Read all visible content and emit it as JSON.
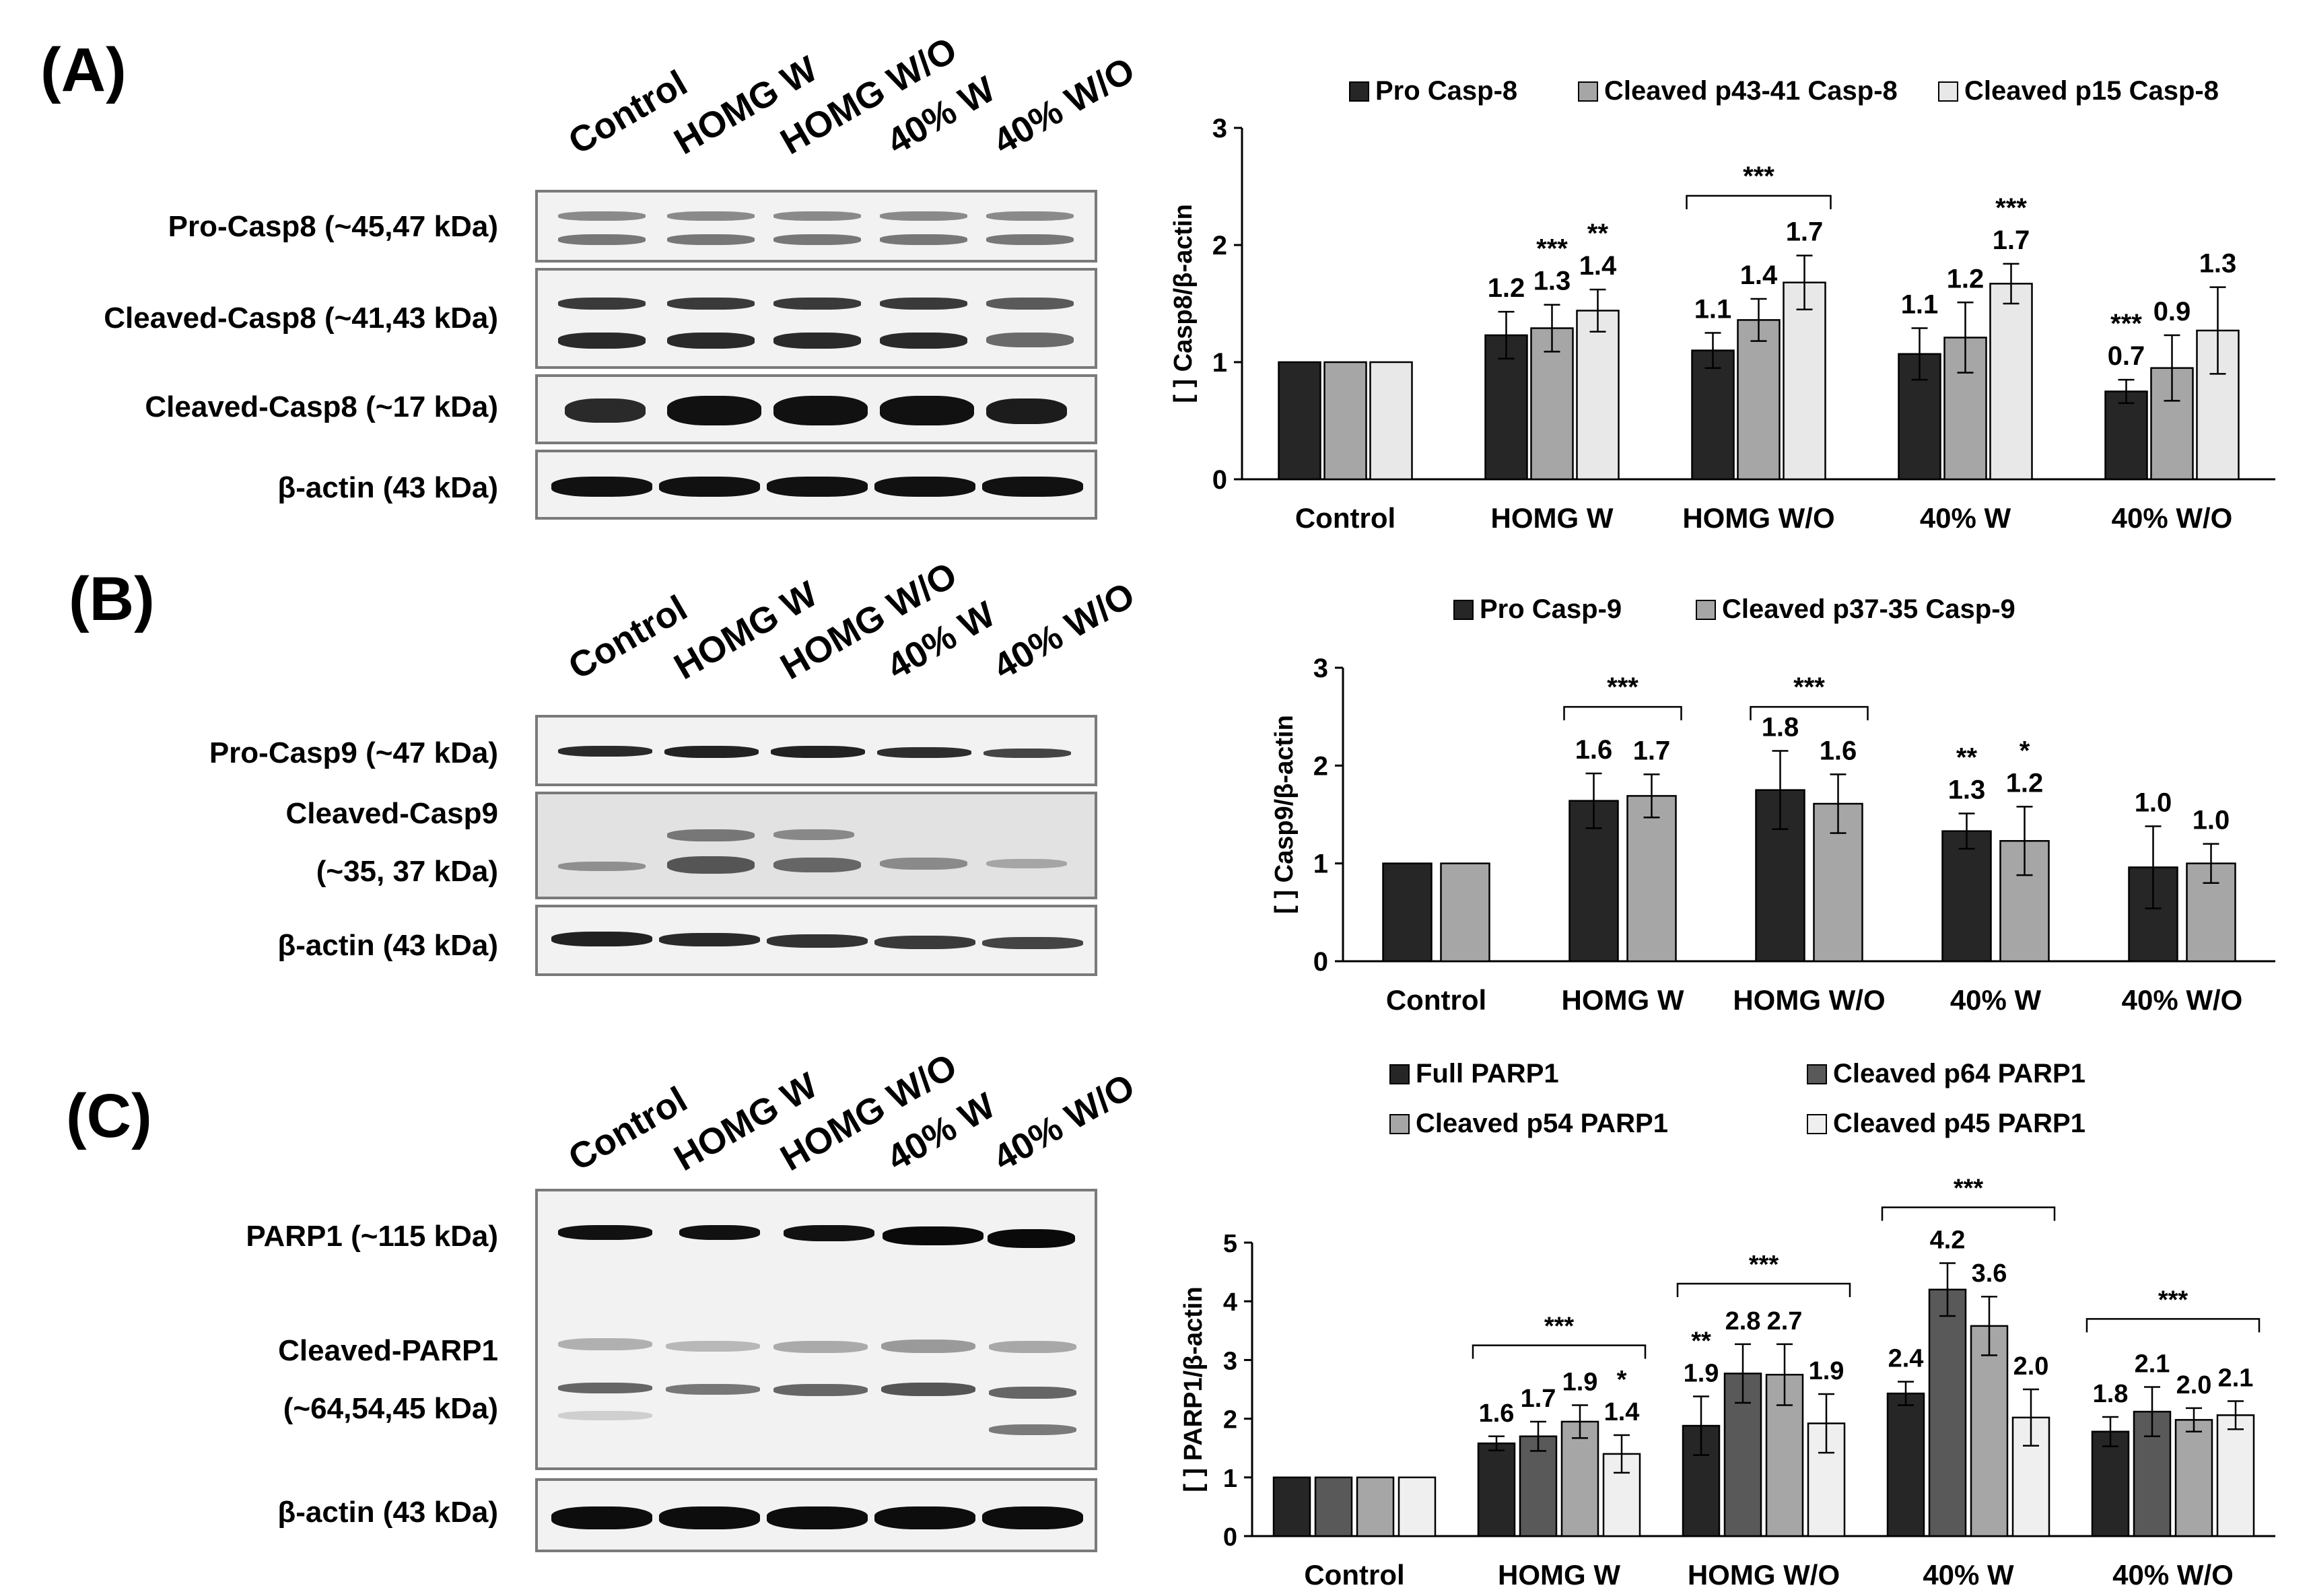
{
  "panels": [
    {
      "letter": "(A)",
      "lanes": [
        "Control",
        "HOMG W",
        "HOMG W/O",
        "40% W",
        "40% W/O"
      ],
      "rows": [
        "Pro-Casp8 (~45,47 kDa)",
        "Cleaved-Casp8 (~41,43 kDa)",
        "Cleaved-Casp8 (~17 kDa)",
        "β-actin (43 kDa)"
      ]
    },
    {
      "letter": "(B)",
      "lanes": [
        "Control",
        "HOMG W",
        "HOMG W/O",
        "40% W",
        "40% W/O"
      ],
      "rows": [
        "Pro-Casp9 (~47 kDa)",
        "Cleaved-Casp9",
        "(~35, 37 kDa)",
        "β-actin (43 kDa)"
      ]
    },
    {
      "letter": "(C)",
      "lanes": [
        "Control",
        "HOMG W",
        "HOMG W/O",
        "40% W",
        "40% W/O"
      ],
      "rows": [
        "PARP1 (~115 kDa)",
        "Cleaved-PARP1",
        "(~64,54,45 kDa)",
        "β-actin (43 kDa)"
      ]
    }
  ],
  "chart_data": [
    {
      "type": "bar",
      "ylabel": "[ ] Casp8/β-actin",
      "ylim": [
        0,
        3
      ],
      "yticks": [
        "0",
        "1",
        "2",
        "3"
      ],
      "categories": [
        "Control",
        "HOMG W",
        "HOMG W/O",
        "40% W",
        "40% W/O"
      ],
      "series": [
        {
          "name": "Pro Casp-8",
          "color": "#262626",
          "values": [
            1.0,
            1.23,
            1.1,
            1.07,
            0.75
          ],
          "errors": [
            0,
            0.2,
            0.15,
            0.22,
            0.1
          ]
        },
        {
          "name": "Cleaved p43-41 Casp-8",
          "color": "#a6a6a6",
          "values": [
            1.0,
            1.29,
            1.36,
            1.21,
            0.95
          ],
          "errors": [
            0,
            0.2,
            0.18,
            0.3,
            0.28
          ]
        },
        {
          "name": "Cleaved p15 Casp-8",
          "color": "#e8e8e8",
          "values": [
            1.0,
            1.44,
            1.68,
            1.67,
            1.27
          ],
          "errors": [
            0,
            0.18,
            0.23,
            0.17,
            0.37
          ]
        }
      ],
      "data_labels": [
        [
          null,
          "1.2",
          "1.1",
          "1.1",
          "0.7"
        ],
        [
          null,
          "1.3",
          "1.4",
          "1.2",
          "0.9"
        ],
        [
          null,
          "1.4",
          "1.7",
          "1.7",
          "1.3"
        ]
      ],
      "stars": [
        [
          null,
          "",
          "",
          "",
          "***"
        ],
        [
          null,
          "***",
          "",
          "",
          ""
        ],
        [
          null,
          "**",
          "",
          "***",
          ""
        ]
      ],
      "brackets": [
        {
          "category": 2,
          "label": "***",
          "y": 2.42
        }
      ]
    },
    {
      "type": "bar",
      "ylabel": "[ ] Casp9/β-actin",
      "ylim": [
        0,
        3
      ],
      "yticks": [
        "0",
        "1",
        "2",
        "3"
      ],
      "categories": [
        "Control",
        "HOMG W",
        "HOMG W/O",
        "40% W",
        "40% W/O"
      ],
      "series": [
        {
          "name": "Pro Casp-9",
          "color": "#262626",
          "values": [
            1.0,
            1.64,
            1.75,
            1.33,
            0.96
          ],
          "errors": [
            0,
            0.28,
            0.4,
            0.18,
            0.42
          ]
        },
        {
          "name": "Cleaved p37-35 Casp-9",
          "color": "#a6a6a6",
          "values": [
            1.0,
            1.69,
            1.61,
            1.23,
            1.0
          ],
          "errors": [
            0,
            0.22,
            0.3,
            0.35,
            0.2
          ]
        }
      ],
      "data_labels": [
        [
          null,
          "1.6",
          "1.8",
          "1.3",
          "1.0"
        ],
        [
          null,
          "1.7",
          "1.6",
          "1.2",
          "1.0"
        ]
      ],
      "stars": [
        [
          null,
          "",
          "",
          "**",
          ""
        ],
        [
          null,
          "",
          "",
          "*",
          ""
        ]
      ],
      "brackets": [
        {
          "category": 1,
          "label": "***",
          "y": 2.6
        },
        {
          "category": 2,
          "label": "***",
          "y": 2.6
        }
      ]
    },
    {
      "type": "bar",
      "ylabel": "[ ] PARP1/β-actin",
      "ylim": [
        0,
        5
      ],
      "yticks": [
        "0",
        "1",
        "2",
        "3",
        "4",
        "5"
      ],
      "categories": [
        "Control",
        "HOMG W",
        "HOMG W/O",
        "40% W",
        "40% W/O"
      ],
      "series": [
        {
          "name": "Full PARP1",
          "color": "#262626",
          "values": [
            1.0,
            1.58,
            1.88,
            2.43,
            1.78
          ],
          "errors": [
            0,
            0.12,
            0.5,
            0.2,
            0.25
          ]
        },
        {
          "name": "Cleaved p64 PARP1",
          "color": "#595959",
          "values": [
            1.0,
            1.7,
            2.77,
            4.2,
            2.12
          ],
          "errors": [
            0,
            0.25,
            0.5,
            0.45,
            0.42
          ]
        },
        {
          "name": "Cleaved p54 PARP1",
          "color": "#a6a6a6",
          "values": [
            1.0,
            1.95,
            2.75,
            3.58,
            1.98
          ],
          "errors": [
            0,
            0.28,
            0.52,
            0.5,
            0.2
          ]
        },
        {
          "name": "Cleaved p45 PARP1",
          "color": "#efefef",
          "values": [
            1.0,
            1.4,
            1.92,
            2.02,
            2.06
          ],
          "errors": [
            0,
            0.32,
            0.5,
            0.48,
            0.24
          ]
        }
      ],
      "data_labels": [
        [
          null,
          "1.6",
          "1.9",
          "2.4",
          "1.8"
        ],
        [
          null,
          "1.7",
          "2.8",
          "4.2",
          "2.1"
        ],
        [
          null,
          "1.9",
          "2.7",
          "3.6",
          "2.0"
        ],
        [
          null,
          "1.4",
          "1.9",
          "2.0",
          "2.1"
        ]
      ],
      "stars": [
        [
          null,
          "",
          "**",
          "",
          ""
        ],
        [
          null,
          "",
          "",
          "",
          ""
        ],
        [
          null,
          "",
          "",
          "",
          ""
        ],
        [
          null,
          "*",
          "",
          "",
          ""
        ]
      ],
      "brackets": [
        {
          "category": 1,
          "label": "***",
          "y": 3.25
        },
        {
          "category": 2,
          "label": "***",
          "y": 4.3
        },
        {
          "category": 3,
          "label": "***",
          "y": 5.6
        },
        {
          "category": 4,
          "label": "***",
          "y": 3.7
        }
      ]
    }
  ]
}
